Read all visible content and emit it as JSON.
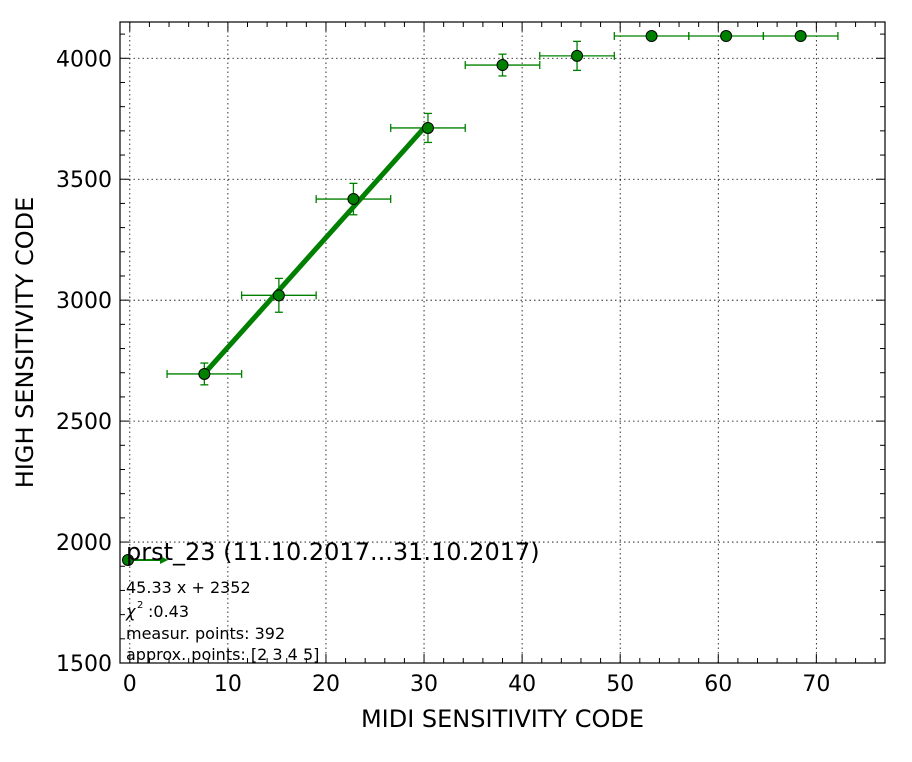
{
  "chart_data": {
    "type": "scatter",
    "xlabel": "MIDI SENSITIVITY CODE",
    "ylabel": "HIGH SENSITIVITY CODE",
    "xlim": [
      -1,
      77
    ],
    "ylim": [
      1500,
      4150
    ],
    "xticks": [
      0,
      10,
      20,
      30,
      40,
      50,
      60,
      70
    ],
    "yticks": [
      1500,
      2000,
      2500,
      3000,
      3500,
      4000
    ],
    "grid": true,
    "series": [
      {
        "color": "#008000",
        "marker": "circle",
        "points": [
          {
            "x": 7.6,
            "y": 2695,
            "xerr": 3.8,
            "yerr": 45
          },
          {
            "x": 15.2,
            "y": 3020,
            "xerr": 3.8,
            "yerr": 70
          },
          {
            "x": 22.8,
            "y": 3418,
            "xerr": 3.8,
            "yerr": 65
          },
          {
            "x": 30.4,
            "y": 3712,
            "xerr": 3.8,
            "yerr": 60
          },
          {
            "x": 38.0,
            "y": 3972,
            "xerr": 3.8,
            "yerr": 45
          },
          {
            "x": 45.6,
            "y": 4010,
            "xerr": 3.8,
            "yerr": 60
          },
          {
            "x": 53.2,
            "y": 4092,
            "xerr": 3.8,
            "yerr": 0
          },
          {
            "x": 60.8,
            "y": 4092,
            "xerr": 3.8,
            "yerr": 0
          },
          {
            "x": 68.4,
            "y": 4092,
            "xerr": 3.8,
            "yerr": 0
          }
        ]
      }
    ],
    "fit": {
      "slope": 45.33,
      "intercept": 2352,
      "x_range": [
        7.6,
        30.4
      ],
      "color": "#008000"
    },
    "legend": {
      "placement": "lower-left",
      "title": "prst_23 (11.10.2017...31.10.2017)",
      "lines": [
        "45.33 x + 2352",
        ":0.43",
        "measur. points: 392",
        "approx. points: [2 3 4 5]"
      ],
      "chi_symbol": "χ",
      "chi_superscript": "2"
    }
  }
}
